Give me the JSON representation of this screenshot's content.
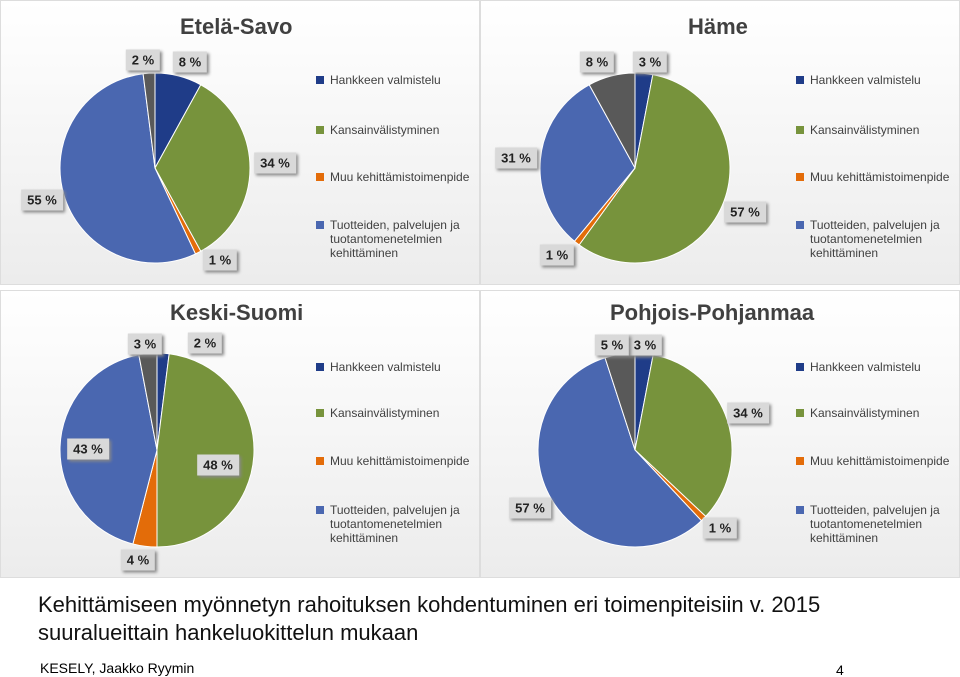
{
  "chart_data": [
    {
      "type": "pie",
      "title": "Etelä-Savo",
      "categories": [
        "Hankkeen valmistelu",
        "Kansainvälistyminen",
        "Muu kehittämistoimenpide",
        "Tuotteiden, palvelujen ja tuotantomenetelmien kehittäminen",
        null
      ],
      "values": [
        8,
        34,
        1,
        55,
        2
      ],
      "value_labels": [
        "8 %",
        "34 %",
        "1 %",
        "55 %",
        "2 %"
      ],
      "colors": [
        "#1f3c88",
        "#77933c",
        "#e36c09",
        "#4a67b0",
        "#595959"
      ]
    },
    {
      "type": "pie",
      "title": "Häme",
      "categories": [
        "Hankkeen valmistelu",
        "Kansainvälistyminen",
        "Muu kehittämistoimenpide",
        "Tuotteiden, palvelujen ja tuotantomenetelmien kehittäminen",
        null
      ],
      "values": [
        3,
        57,
        1,
        31,
        8
      ],
      "value_labels": [
        "3 %",
        "57 %",
        "1 %",
        "31 %",
        "8 %"
      ],
      "colors": [
        "#1f3c88",
        "#77933c",
        "#e36c09",
        "#4a67b0",
        "#595959"
      ]
    },
    {
      "type": "pie",
      "title": "Keski-Suomi",
      "categories": [
        "Hankkeen valmistelu",
        "Kansainvälistyminen",
        "Muu kehittämistoimenpide",
        "Tuotteiden, palvelujen ja tuotantomenetelmien kehittäminen",
        null
      ],
      "values": [
        2,
        48,
        4,
        43,
        3
      ],
      "value_labels": [
        "2 %",
        "48 %",
        "4 %",
        "43 %",
        "3 %"
      ],
      "colors": [
        "#1f3c88",
        "#77933c",
        "#e36c09",
        "#4a67b0",
        "#595959"
      ]
    },
    {
      "type": "pie",
      "title": "Pohjois-Pohjanmaa",
      "categories": [
        "Hankkeen valmistelu",
        "Kansainvälistyminen",
        "Muu kehittämistoimenpide",
        "Tuotteiden, palvelujen ja tuotantomenetelmien kehittäminen",
        null
      ],
      "values": [
        3,
        34,
        1,
        57,
        5
      ],
      "value_labels": [
        "3 %",
        "34 %",
        "1 %",
        "57 %",
        "5 %"
      ],
      "colors": [
        "#1f3c88",
        "#77933c",
        "#e36c09",
        "#4a67b0",
        "#595959"
      ]
    }
  ],
  "caption": [
    "Kehittämiseen myönnetyn rahoituksen kohdentuminen eri toimenpiteisiin v. 2015",
    "suuralueittain hankeluokittelun mukaan"
  ],
  "footer": {
    "author": "KESELY, Jaakko Ryymin",
    "page": "4"
  }
}
